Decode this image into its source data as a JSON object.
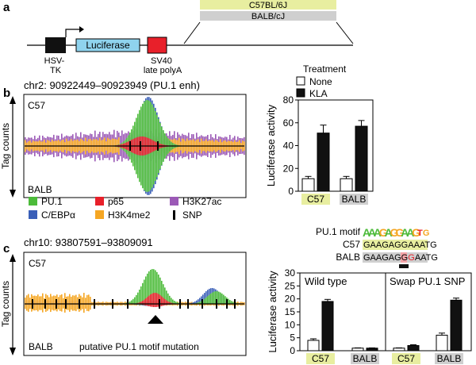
{
  "panels": {
    "a": "a",
    "b": "b",
    "c": "c"
  },
  "construct": {
    "strain_top": "C57BL/6J",
    "strain_bottom": "BALB/cJ",
    "promoter": "HSV-TK",
    "reporter": "Luciferase",
    "polyA": "SV40 late polyA",
    "colors": {
      "c57": "#e8eea0",
      "balb": "#cfcfcf",
      "luciferase": "#8fd3ee",
      "polyA": "#e8202a",
      "promoter": "#111111"
    }
  },
  "legend_treatment": {
    "title": "Treatment",
    "items": [
      {
        "label": "None",
        "color": "#ffffff"
      },
      {
        "label": "KLA",
        "color": "#111111"
      }
    ]
  },
  "track_legend": [
    {
      "label": "PU.1",
      "color": "#4cbb3a"
    },
    {
      "label": "p65",
      "color": "#e8202a"
    },
    {
      "label": "H3K27ac",
      "color": "#9b59b6"
    },
    {
      "label": "C/EBPα",
      "color": "#3a5fb8"
    },
    {
      "label": "H3K4me2",
      "color": "#f5a623"
    },
    {
      "label": "SNP",
      "color": "#000000"
    }
  ],
  "tracks": {
    "ylabel": "Tag counts",
    "b": {
      "region": "chr2: 90922449–90923949 (PU.1 enh)",
      "top": "C57",
      "bottom": "BALB"
    },
    "c": {
      "region": "chr10: 93807591–93809091",
      "top": "C57",
      "bottom": "BALB",
      "annotation": "putative PU.1 motif mutation"
    }
  },
  "motif": {
    "title": "PU.1 motif",
    "logo": "AAAGAGGAAGTG",
    "c57_label": "C57",
    "c57_seq": "GAAGAGGAAATG",
    "balb_label": "BALB",
    "balb_seq_pre": "GAAGAGG",
    "balb_snp": "G",
    "balb_seq_post": "AATG"
  },
  "chart_data": [
    {
      "type": "bar",
      "title": "",
      "ylabel": "Luciferase activity",
      "ylim": [
        0,
        80
      ],
      "yticks": [
        0,
        20,
        40,
        60,
        80
      ],
      "categories": [
        "C57",
        "BALB"
      ],
      "series": [
        {
          "name": "None",
          "values": [
            11,
            11
          ],
          "errors": [
            2,
            2
          ]
        },
        {
          "name": "KLA",
          "values": [
            51,
            57
          ],
          "errors": [
            7,
            5
          ]
        }
      ]
    },
    {
      "type": "bar",
      "ylabel": "Luciferase activity",
      "ylim": [
        0,
        30
      ],
      "yticks": [
        0,
        5,
        10,
        15,
        20,
        25,
        30
      ],
      "facets": [
        {
          "title": "Wild type",
          "categories": [
            "C57",
            "BALB"
          ],
          "series": [
            {
              "name": "None",
              "values": [
                4,
                1
              ],
              "errors": [
                0.6,
                0.1
              ]
            },
            {
              "name": "KLA",
              "values": [
                19,
                1
              ],
              "errors": [
                0.8,
                0.1
              ]
            }
          ]
        },
        {
          "title": "Swap PU.1 SNP",
          "categories": [
            "C57",
            "BALB"
          ],
          "series": [
            {
              "name": "None",
              "values": [
                1,
                6
              ],
              "errors": [
                0.1,
                0.8
              ]
            },
            {
              "name": "KLA",
              "values": [
                2,
                19.5
              ],
              "errors": [
                0.3,
                0.8
              ]
            }
          ]
        }
      ]
    }
  ]
}
